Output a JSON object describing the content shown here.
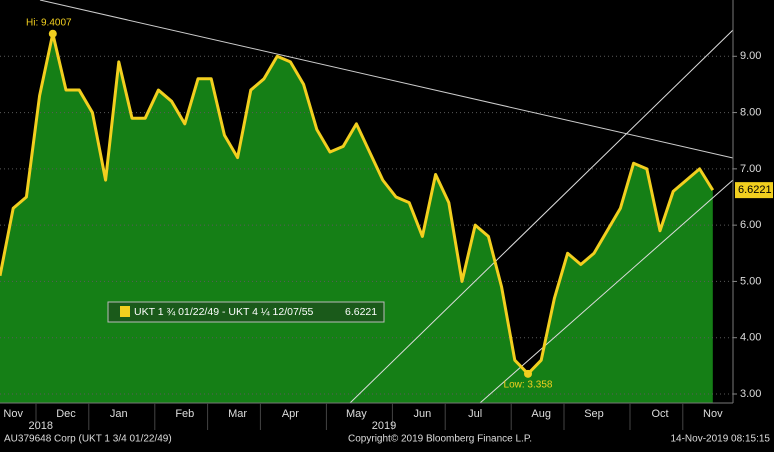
{
  "chart_data": {
    "type": "area",
    "series": [
      {
        "name": "UKT 1 ¾ 01/22/49 - UKT 4 ¼ 12/07/55",
        "color": "#f2cf1f",
        "fill": "#157f16",
        "values": [
          5.1,
          6.3,
          6.5,
          8.3,
          9.4007,
          8.4,
          8.4,
          8.0,
          6.8,
          8.9,
          7.9,
          7.9,
          8.4,
          8.2,
          7.8,
          8.6,
          8.6,
          7.6,
          7.2,
          8.4,
          8.6,
          9.0,
          8.9,
          8.5,
          7.7,
          7.3,
          7.4,
          7.8,
          7.3,
          6.8,
          6.5,
          6.4,
          5.8,
          6.9,
          6.4,
          5.0,
          6.0,
          5.8,
          4.9,
          3.6,
          3.358,
          3.6,
          4.7,
          5.5,
          5.3,
          5.5,
          5.9,
          6.3,
          7.1,
          7.0,
          5.9,
          6.6,
          6.8,
          7.0,
          6.6221
        ]
      }
    ],
    "categories": [
      null,
      "Nov",
      null,
      null,
      null,
      "Dec",
      null,
      null,
      null,
      "Jan",
      null,
      null,
      null,
      null,
      "Feb",
      null,
      null,
      null,
      "Mar",
      null,
      null,
      null,
      "Apr",
      null,
      null,
      null,
      null,
      "May",
      null,
      null,
      null,
      null,
      "Jun",
      null,
      null,
      null,
      "Jul",
      null,
      null,
      null,
      null,
      "Aug",
      null,
      null,
      null,
      "Sep",
      null,
      null,
      null,
      null,
      "Oct",
      null,
      null,
      null,
      "Nov"
    ],
    "year_labels": [
      {
        "index": 4,
        "label": "2018"
      },
      {
        "index": 30,
        "label": "2019"
      }
    ],
    "ylim": [
      2.84,
      10.0
    ],
    "yticks": [
      {
        "value": 3,
        "label": "3.00"
      },
      {
        "value": 4,
        "label": "4.00"
      },
      {
        "value": 5,
        "label": "5.00"
      },
      {
        "value": 6,
        "label": "6.00"
      },
      {
        "value": 7,
        "label": "7.00"
      },
      {
        "value": 8,
        "label": "8.00"
      },
      {
        "value": 9,
        "label": "9.00"
      }
    ],
    "annotations": {
      "high": "Hi: 9.4007",
      "low": "Low: 3.358"
    },
    "footer": {
      "left": "AU379648 Corp (UKT 1 3/4 01/22/49)",
      "center": "Copyright© 2019 Bloomberg Finance L.P.",
      "right": "14-Nov-2019 08:15:15"
    },
    "grid": true
  }
}
